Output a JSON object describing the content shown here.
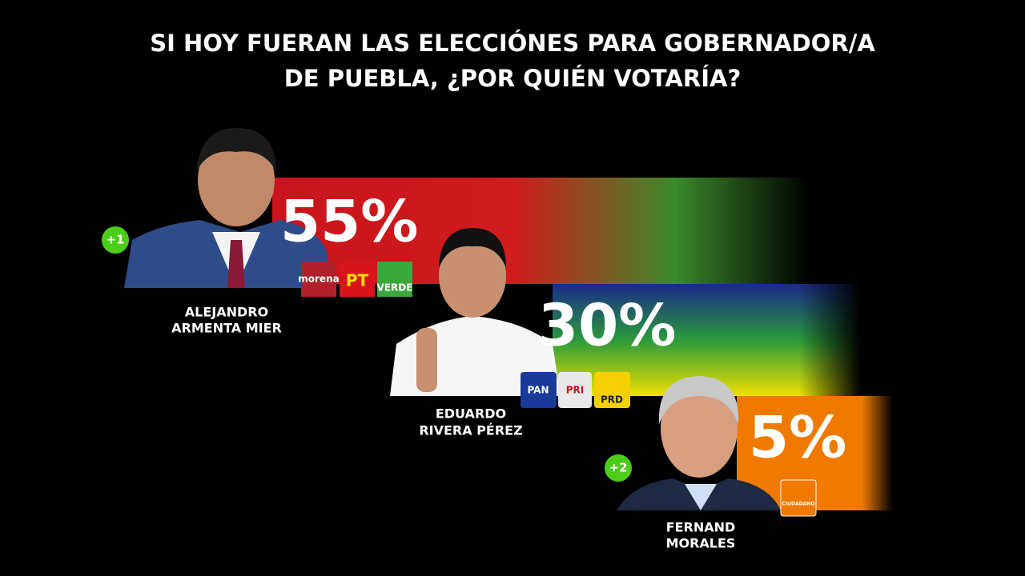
{
  "header": {
    "title_lines": [
      "SI HOY FUERAN LAS ELECCIÓNES PARA GOBERNADOR/A",
      "DE PUEBLA, ¿POR QUIÉN VOTARÍA?"
    ]
  },
  "candidates": [
    {
      "name_lines": [
        "ALEJANDRO",
        "ARMENTA MIER"
      ],
      "percent": "55%",
      "badge": "+1",
      "parties": [
        "morena",
        "PT",
        "VERDE"
      ]
    },
    {
      "name_lines": [
        "EDUARDO",
        "RIVERA PÉREZ"
      ],
      "percent": "30%",
      "parties": [
        "PAN",
        "PRI",
        "PRD"
      ]
    },
    {
      "name_lines": [
        "FERNAND",
        "MORALES"
      ],
      "percent": "5%",
      "badge": "+2",
      "parties": [
        "CIUDADANO"
      ]
    }
  ]
}
